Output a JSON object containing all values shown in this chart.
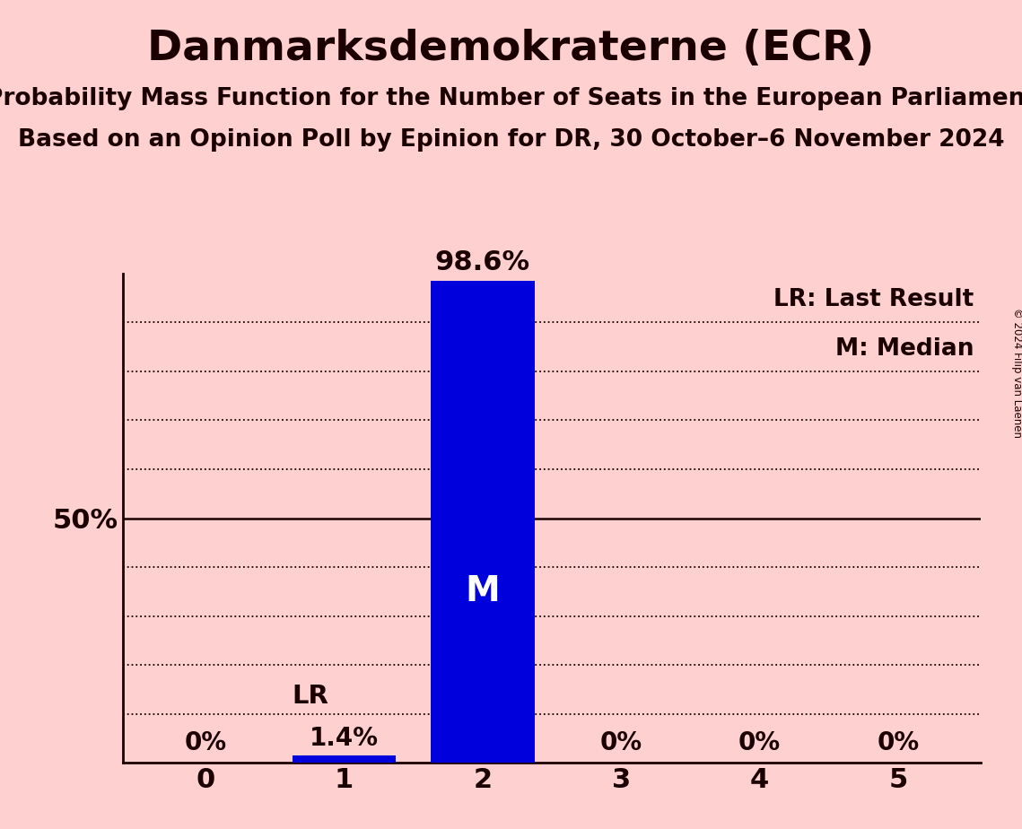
{
  "title": "Danmarksdemokraterne (ECR)",
  "subtitle1": "Probability Mass Function for the Number of Seats in the European Parliament",
  "subtitle2": "Based on an Opinion Poll by Epinion for DR, 30 October–6 November 2024",
  "copyright": "© 2024 Filip van Laenen",
  "categories": [
    0,
    1,
    2,
    3,
    4,
    5
  ],
  "values": [
    0.0,
    1.4,
    98.6,
    0.0,
    0.0,
    0.0
  ],
  "bar_color": "#0000DD",
  "background_color": "#FFD0D0",
  "bar_labels": [
    "0%",
    "1.4%",
    "98.6%",
    "0%",
    "0%",
    "0%"
  ],
  "median_seat": 2,
  "lr_seat": 1,
  "ylim": [
    0,
    100
  ],
  "ylabel_50": "50%",
  "legend_lr": "LR: Last Result",
  "legend_m": "M: Median",
  "title_fontsize": 34,
  "subtitle_fontsize": 19,
  "label_fontsize": 20,
  "tick_fontsize": 22,
  "bar_width": 0.75
}
